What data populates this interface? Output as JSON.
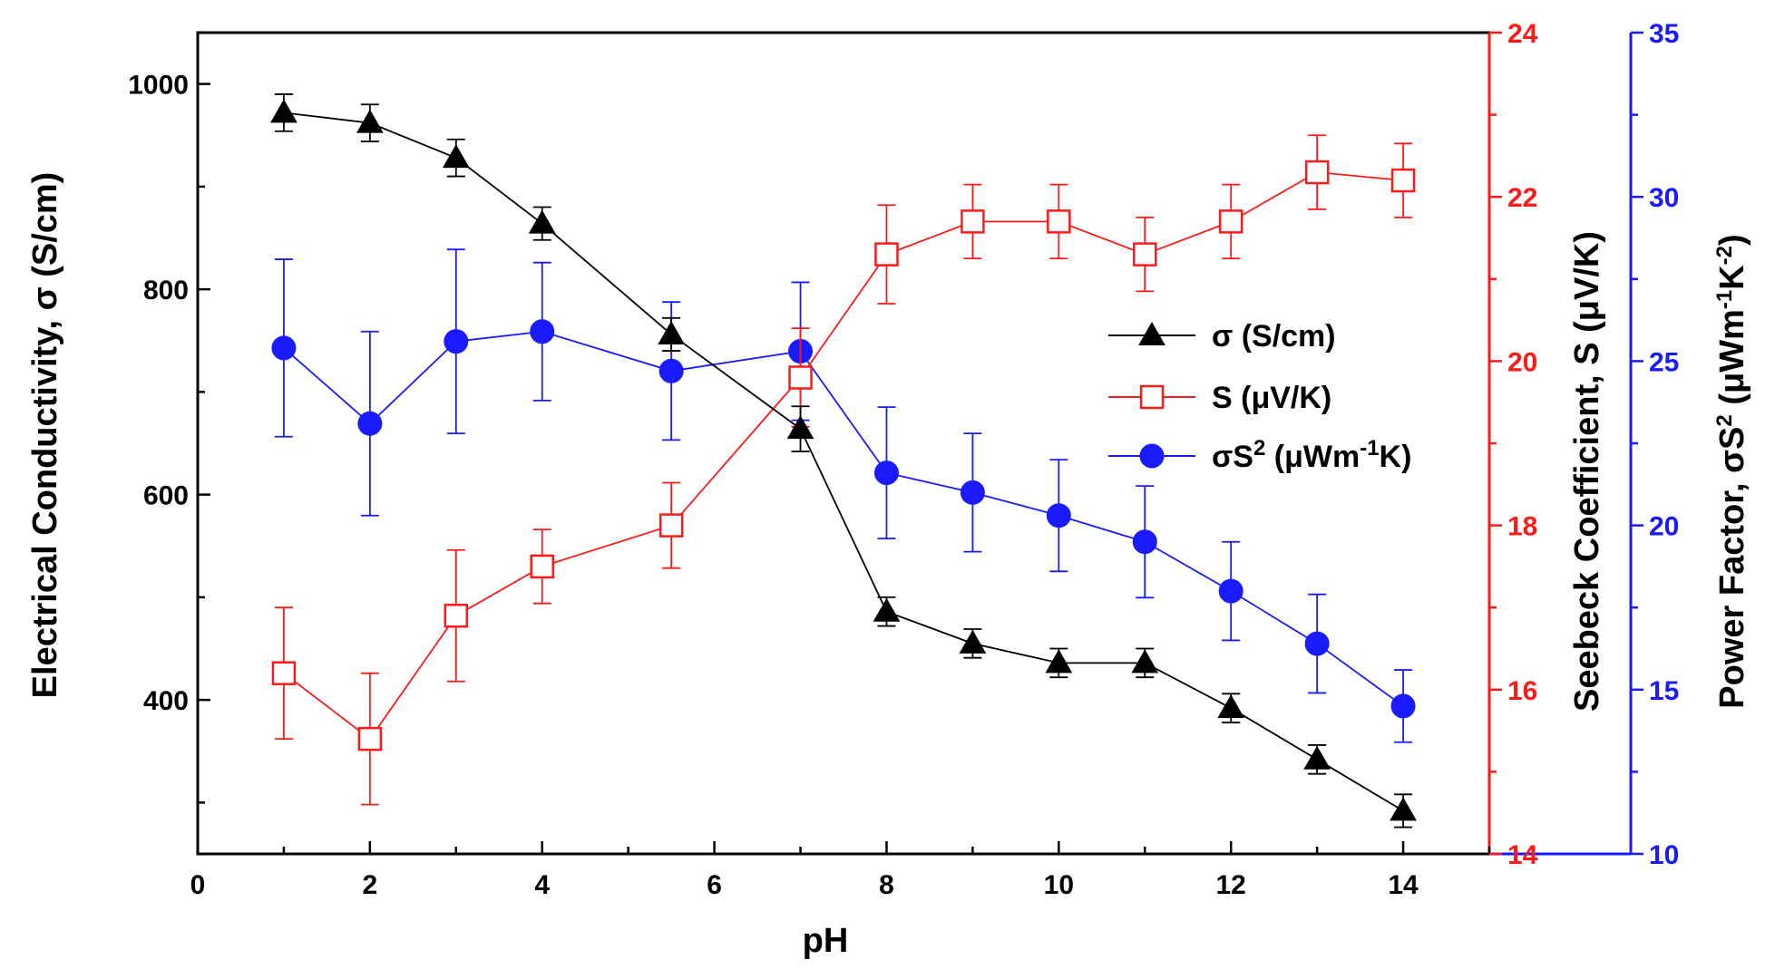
{
  "chart_data": {
    "type": "line",
    "xlabel": "pH",
    "x_ticks": [
      "0",
      "2",
      "4",
      "6",
      "8",
      "10",
      "12",
      "14"
    ],
    "xlim": [
      0,
      15
    ],
    "axes": {
      "left": {
        "label": "Electrical Conductivity, σ (S/cm)",
        "ylim": [
          250,
          1050
        ],
        "ticks": [
          "400",
          "600",
          "800",
          "1000"
        ],
        "color": "#000000"
      },
      "right1": {
        "label": "Seebeck Coefficient, S (μV/K)",
        "ylim": [
          14,
          24
        ],
        "ticks": [
          "14",
          "16",
          "18",
          "20",
          "22",
          "24"
        ],
        "color": "#ff1a1a"
      },
      "right2": {
        "label_parts": [
          "Power Factor, σS",
          "2",
          " (μWm",
          "-1",
          "K",
          "-2",
          ")"
        ],
        "ylim": [
          10,
          35
        ],
        "ticks": [
          "10",
          "15",
          "20",
          "25",
          "30",
          "35"
        ],
        "color": "#1a1aff"
      }
    },
    "series": [
      {
        "name": "σ (S/cm)",
        "axis": "left",
        "marker": "filled-triangle",
        "color": "#000000",
        "x": [
          1,
          2,
          3,
          4,
          5.5,
          7,
          8,
          9,
          10,
          11,
          12,
          13,
          14
        ],
        "y": [
          972,
          962,
          928,
          864,
          756,
          664,
          486,
          455,
          436,
          436,
          392,
          342,
          292
        ],
        "err": [
          18,
          18,
          18,
          16,
          16,
          22,
          14,
          14,
          14,
          14,
          14,
          14,
          16
        ]
      },
      {
        "name": "S (μV/K)",
        "axis": "right1",
        "marker": "open-square",
        "color": "#ff1a1a",
        "x": [
          1,
          2,
          3,
          4,
          5.5,
          7,
          8,
          9,
          10,
          11,
          12,
          13,
          14
        ],
        "y": [
          16.2,
          15.4,
          16.9,
          17.5,
          18.0,
          19.8,
          21.3,
          21.7,
          21.7,
          21.3,
          21.7,
          22.3,
          22.2
        ],
        "err": [
          0.8,
          0.8,
          0.8,
          0.45,
          0.52,
          0.6,
          0.6,
          0.45,
          0.45,
          0.45,
          0.45,
          0.45,
          0.45
        ]
      },
      {
        "name_parts": [
          "σS",
          "2",
          " (μWm",
          "-1",
          "K)"
        ],
        "axis": "right2",
        "marker": "filled-circle",
        "color": "#1a1aff",
        "x": [
          1,
          2,
          3,
          4,
          5.5,
          7,
          8,
          9,
          10,
          11,
          12,
          13,
          14
        ],
        "y": [
          25.4,
          23.1,
          25.6,
          25.9,
          24.7,
          25.3,
          21.6,
          21.0,
          20.3,
          19.5,
          18.0,
          16.4,
          14.5
        ],
        "err": [
          2.7,
          2.8,
          2.8,
          2.1,
          2.1,
          2.1,
          2.0,
          1.8,
          1.7,
          1.7,
          1.5,
          1.5,
          1.1
        ]
      }
    ],
    "legend": {
      "position": "center-right"
    }
  }
}
